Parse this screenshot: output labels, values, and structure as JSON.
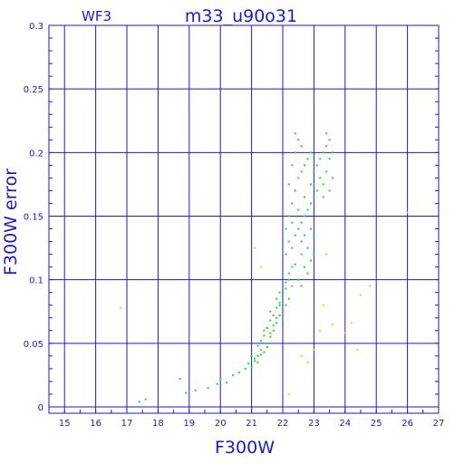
{
  "chart_data": {
    "type": "scatter",
    "instrument_label": "WF3",
    "title": "m33_u90o31",
    "xlabel": "F300W",
    "ylabel": "F300W error",
    "xlim": [
      14.5,
      27
    ],
    "ylim": [
      -0.005,
      0.3
    ],
    "x_ticks": [
      15,
      16,
      17,
      18,
      19,
      20,
      21,
      22,
      23,
      24,
      25,
      26,
      27
    ],
    "y_ticks": [
      "0",
      "0.05",
      "0.1",
      "0.15",
      "0.2",
      "0.25",
      "0.3"
    ],
    "grid": true,
    "colors": {
      "axis": "#1a1ad0",
      "grid": "#1a1ad0",
      "series_green": "#22dd22",
      "series_yellow": "#f0d000"
    },
    "series": [
      {
        "color": "#22dd22",
        "points": [
          [
            17.4,
            0.004
          ],
          [
            17.6,
            0.006
          ],
          [
            18.7,
            0.022
          ],
          [
            18.9,
            0.011
          ],
          [
            19.2,
            0.013
          ],
          [
            19.6,
            0.015
          ],
          [
            19.9,
            0.018
          ],
          [
            20.0,
            0.022
          ],
          [
            20.2,
            0.019
          ],
          [
            20.4,
            0.025
          ],
          [
            20.6,
            0.027
          ],
          [
            20.8,
            0.03
          ],
          [
            20.9,
            0.034
          ],
          [
            21.0,
            0.031
          ],
          [
            21.1,
            0.036
          ],
          [
            21.2,
            0.04
          ],
          [
            21.3,
            0.045
          ],
          [
            21.4,
            0.043
          ],
          [
            21.5,
            0.05
          ],
          [
            21.6,
            0.055
          ],
          [
            21.1,
            0.038
          ],
          [
            21.3,
            0.041
          ],
          [
            21.5,
            0.047
          ],
          [
            21.7,
            0.06
          ],
          [
            21.8,
            0.066
          ],
          [
            21.9,
            0.072
          ],
          [
            22.0,
            0.076
          ],
          [
            21.6,
            0.058
          ],
          [
            21.8,
            0.07
          ],
          [
            21.9,
            0.08
          ],
          [
            22.0,
            0.09
          ],
          [
            22.1,
            0.098
          ],
          [
            22.2,
            0.105
          ],
          [
            22.3,
            0.11
          ],
          [
            21.7,
            0.064
          ],
          [
            22.0,
            0.086
          ],
          [
            22.1,
            0.093
          ],
          [
            22.2,
            0.1
          ],
          [
            22.4,
            0.112
          ],
          [
            22.1,
            0.12
          ],
          [
            22.2,
            0.13
          ],
          [
            22.3,
            0.125
          ],
          [
            22.4,
            0.135
          ],
          [
            22.5,
            0.14
          ],
          [
            22.6,
            0.145
          ],
          [
            22.7,
            0.15
          ],
          [
            22.8,
            0.155
          ],
          [
            22.9,
            0.16
          ],
          [
            23.0,
            0.165
          ],
          [
            22.1,
            0.14
          ],
          [
            22.2,
            0.15
          ],
          [
            22.3,
            0.16
          ],
          [
            22.4,
            0.17
          ],
          [
            22.5,
            0.18
          ],
          [
            22.6,
            0.185
          ],
          [
            22.7,
            0.19
          ],
          [
            22.8,
            0.195
          ],
          [
            22.9,
            0.2
          ],
          [
            23.0,
            0.175
          ],
          [
            22.2,
            0.175
          ],
          [
            22.3,
            0.19
          ],
          [
            22.4,
            0.2
          ],
          [
            22.5,
            0.21
          ],
          [
            22.6,
            0.205
          ],
          [
            22.4,
            0.215
          ],
          [
            22.6,
            0.12
          ],
          [
            22.7,
            0.11
          ],
          [
            22.8,
            0.105
          ],
          [
            22.9,
            0.115
          ],
          [
            23.0,
            0.12
          ],
          [
            22.6,
            0.13
          ],
          [
            22.7,
            0.135
          ],
          [
            22.8,
            0.125
          ],
          [
            22.9,
            0.14
          ],
          [
            23.0,
            0.135
          ],
          [
            22.3,
            0.145
          ],
          [
            22.5,
            0.155
          ],
          [
            22.7,
            0.165
          ],
          [
            22.9,
            0.175
          ],
          [
            23.0,
            0.185
          ],
          [
            23.1,
            0.19
          ],
          [
            23.2,
            0.195
          ],
          [
            23.3,
            0.2
          ],
          [
            23.4,
            0.205
          ],
          [
            23.5,
            0.21
          ],
          [
            23.2,
            0.18
          ],
          [
            23.3,
            0.175
          ],
          [
            23.4,
            0.185
          ],
          [
            23.5,
            0.195
          ],
          [
            23.6,
            0.2
          ],
          [
            23.1,
            0.17
          ],
          [
            23.3,
            0.165
          ],
          [
            23.5,
            0.17
          ],
          [
            23.6,
            0.18
          ],
          [
            23.4,
            0.215
          ],
          [
            22.1,
            0.08
          ],
          [
            22.2,
            0.085
          ],
          [
            22.3,
            0.095
          ],
          [
            22.5,
            0.1
          ],
          [
            22.6,
            0.095
          ],
          [
            21.8,
            0.078
          ],
          [
            21.9,
            0.082
          ],
          [
            22.0,
            0.065
          ],
          [
            21.8,
            0.085
          ],
          [
            21.9,
            0.09
          ],
          [
            21.7,
            0.072
          ],
          [
            21.6,
            0.068
          ],
          [
            21.5,
            0.062
          ],
          [
            21.4,
            0.056
          ],
          [
            21.3,
            0.052
          ],
          [
            21.2,
            0.048
          ],
          [
            21.4,
            0.06
          ],
          [
            21.6,
            0.075
          ],
          [
            21.2,
            0.035
          ],
          [
            21.0,
            0.04
          ]
        ]
      },
      {
        "color": "#f0d000",
        "points": [
          [
            16.8,
            0.078
          ],
          [
            21.1,
            0.125
          ],
          [
            21.3,
            0.11
          ],
          [
            22.2,
            0.01
          ],
          [
            22.6,
            0.04
          ],
          [
            22.8,
            0.035
          ],
          [
            23.0,
            0.045
          ],
          [
            23.2,
            0.06
          ],
          [
            23.3,
            0.08
          ],
          [
            23.4,
            0.12
          ],
          [
            23.6,
            0.065
          ],
          [
            24.0,
            0.058
          ],
          [
            24.2,
            0.066
          ],
          [
            24.4,
            0.045
          ],
          [
            24.5,
            0.088
          ],
          [
            24.8,
            0.095
          ],
          [
            26.0,
            0.153
          ]
        ]
      }
    ]
  }
}
